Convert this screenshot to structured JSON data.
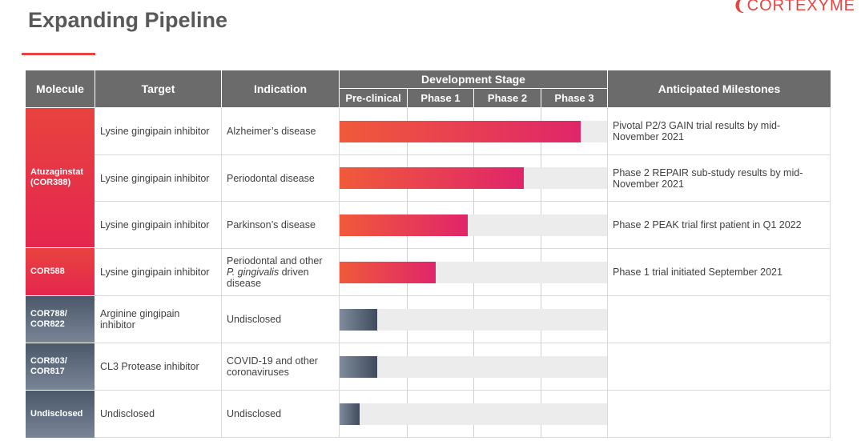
{
  "title": "Expanding Pipeline",
  "logo_text": "CORTEXYME",
  "headers": {
    "molecule": "Molecule",
    "target": "Target",
    "indication": "Indication",
    "development_stage": "Development Stage",
    "stages": [
      "Pre-clinical",
      "Phase 1",
      "Phase 2",
      "Phase 3"
    ],
    "milestones": "Anticipated Milestones"
  },
  "molecules": [
    {
      "name": "Atuzaginstat\n(COR388)",
      "color": "#e5264f"
    },
    {
      "name": "COR588",
      "color": "#e5264f"
    },
    {
      "name": "COR788/\nCOR822",
      "color": "#55627a"
    },
    {
      "name": "COR803/\nCOR817",
      "color": "#55627a"
    },
    {
      "name": "Undisclosed",
      "color": "#55627a"
    }
  ],
  "rows": [
    {
      "target": "Lysine gingipain inhibitor",
      "indication": "Alzheimer’s disease",
      "progress": 0.9,
      "milestone": "Pivotal P2/3 GAIN trial results by mid-November 2021"
    },
    {
      "target": "Lysine gingipain inhibitor",
      "indication": "Periodontal disease",
      "progress": 0.69,
      "milestone": "Phase 2 REPAIR sub-study results by mid-November 2021"
    },
    {
      "target": "Lysine gingipain inhibitor",
      "indication": "Parkinson’s disease",
      "progress": 0.48,
      "milestone": "Phase 2 PEAK trial first patient in Q1 2022"
    },
    {
      "target": "Lysine gingipain inhibitor",
      "indication_line1": "Periodontal and other",
      "indication_italic": "P. gingivalis",
      "indication_line2": " driven",
      "indication_line3": "disease",
      "progress": 0.36,
      "milestone": "Phase 1 trial initiated September 2021"
    },
    {
      "target": "Arginine gingipain inhibitor",
      "indication": "Undisclosed",
      "progress": 0.14,
      "milestone": ""
    },
    {
      "target": "CL3 Protease inhibitor",
      "indication": "COVID-19 and other coronaviruses",
      "progress": 0.14,
      "milestone": ""
    },
    {
      "target": "Undisclosed",
      "indication": "Undisclosed",
      "progress": 0.075,
      "milestone": ""
    }
  ]
}
